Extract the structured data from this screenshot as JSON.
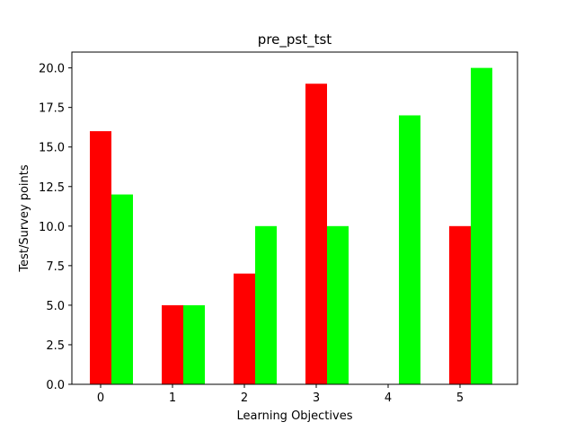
{
  "chart_data": {
    "type": "bar",
    "title": "pre_pst_tst",
    "xlabel": "Learning Objectives",
    "ylabel": "Test/Survey points",
    "categories": [
      "0",
      "1",
      "2",
      "3",
      "4",
      "5"
    ],
    "x": [
      0,
      1,
      2,
      3,
      4,
      5
    ],
    "series": [
      {
        "values": [
          16,
          5,
          7,
          19,
          0,
          10
        ],
        "color": "#ff0000"
      },
      {
        "values": [
          12,
          5,
          10,
          10,
          17,
          20
        ],
        "color": "#00ff00"
      }
    ],
    "xlim": [
      -0.4,
      5.8
    ],
    "ylim": [
      0,
      21
    ],
    "yticks": [
      "0.0",
      "2.5",
      "5.0",
      "7.5",
      "10.0",
      "12.5",
      "15.0",
      "17.5",
      "20.0"
    ],
    "grid": false,
    "legend": "none"
  }
}
